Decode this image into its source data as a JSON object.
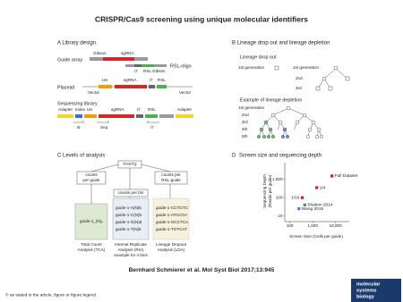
{
  "title": "CRISPR/Cas9 screening using unique molecular identifiers",
  "panel_a": {
    "label": "A Library design.",
    "guide_array": "Guide array",
    "gibson": "Gibson",
    "sgrna": "sgRNA",
    "i7": "i7",
    "rsl_gibson": "RSL Gibson",
    "rsl_oligo": "RSL-oligo",
    "plasmid": "Plasmid",
    "u6": "U6",
    "plasmid_sgrna": "sgRNA",
    "plasmid_i7": "i7",
    "rsl": "RSL",
    "vector_left": "Vector",
    "vector_right": "Vector",
    "seq_library": "Sequencing library",
    "adapter_left": "Adapter",
    "index": "Index",
    "lib_u6": "U6",
    "lib_sgrna": "sgRNA",
    "lib_i7": "i7",
    "lib_rsl": "RSL",
    "adapter_right": "Adapter",
    "primer_i5": "i5",
    "primer_seq": "Seq",
    "primer_i7": "i7"
  },
  "panel_b": {
    "label": "B Lineage drop out and lineage depletion",
    "dropout_title": "Lineage drop out",
    "dropout_gen1_left": "1st generation",
    "dropout_gen1_right": "1st generation",
    "dropout_gen2": "2nd",
    "dropout_gen3": "3rd",
    "depletion_title": "Example of lineage depletion",
    "depletion_gens": [
      "1st generation",
      "2nd",
      "3rd",
      "4th",
      "5th"
    ]
  },
  "panel_c": {
    "label": "C Levels of analysis",
    "fastq": "FASTQ",
    "counts_per_guide": [
      "counts",
      "per guide"
    ],
    "counts_per_rsl": [
      "counts per",
      "RSL-guide"
    ],
    "counts_per_bin": "counts per bin",
    "tca_box": "guide-1_(N)₆",
    "ria_box": [
      "guide-1-A(N)5",
      "guide-1-C(N)5",
      "guide-1-G(N)5",
      "guide-1-T(N)5"
    ],
    "lda_box": [
      "guide-1-CCTGTC",
      "guide-1-ATACGA",
      "guide-1-GCCTCA",
      "guide-1-TGTCAT"
    ],
    "tca_caption": [
      "Total Count",
      "Analysis (TCA)"
    ],
    "ria_caption": [
      "Internal Replicate",
      "Analysis (RIA)",
      "example for 4 bins"
    ],
    "lda_caption": [
      "Lineage Dropout",
      "Analysis (LDA)"
    ]
  },
  "panel_d_label": "D",
  "chart_data": {
    "type": "scatter",
    "title": "Screen size and sequencing depth",
    "x_label": "Screen Size (Cells per guide)",
    "y_label": [
      "Sequencing Depth",
      "(Reads per guide)"
    ],
    "log_x": true,
    "log_y": true,
    "xlim": [
      60,
      40000
    ],
    "ylim": [
      5,
      8000
    ],
    "xticks": [
      100,
      {
        "value": 1000,
        "label": "1,000"
      },
      {
        "value": 10000,
        "label": "10,000"
      }
    ],
    "yticks": [
      10,
      100,
      {
        "value": 1000,
        "label": "1,000"
      }
    ],
    "labels": [
      "Full Dataset",
      "1/4",
      "1/16",
      "Shalem 2014",
      "Wang 2015"
    ],
    "x": [
      7000,
      1500,
      350,
      450,
      250
    ],
    "y": [
      1500,
      350,
      100,
      40,
      25
    ],
    "colors": [
      "#d7191c",
      "#d7191c",
      "#d7191c",
      "#4a7fc1",
      "#4a7fc1"
    ]
  },
  "citation": "Bernhard Schmierer et al. Mol Syst Biol 2017;13:945",
  "footer": "© as stated in the article, figure or figure legend",
  "logo": [
    "molecular",
    "systems",
    "biology"
  ]
}
